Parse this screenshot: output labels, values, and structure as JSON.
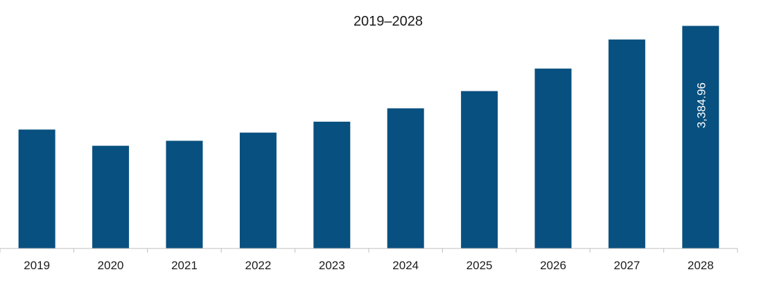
{
  "chart_data": {
    "type": "bar",
    "title": "2019–2028",
    "xlabel": "",
    "ylabel": "",
    "categories": [
      "2019",
      "2020",
      "2021",
      "2022",
      "2023",
      "2024",
      "2025",
      "2026",
      "2027",
      "2028"
    ],
    "values": [
      1808,
      1562,
      1638,
      1762,
      1928,
      2132,
      2394,
      2736,
      3178,
      3384.96
    ],
    "data_labels": [
      "",
      "",
      "",
      "",
      "",
      "",
      "",
      "",
      "",
      "3,384.96"
    ],
    "ylim": [
      0,
      3600
    ],
    "grid": false,
    "legend": "none",
    "bar_color": "#08507f",
    "axis_color": "#bfbfbf"
  }
}
